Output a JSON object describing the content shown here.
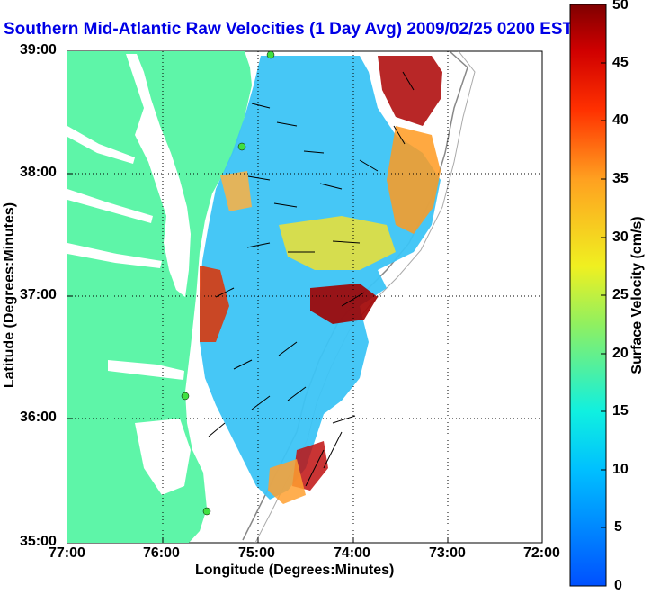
{
  "title": "Southern Mid-Atlantic Raw Velocities (1 Day Avg) 2009/02/25 0200 EST",
  "axes": {
    "xlabel": "Longitude (Degrees:Minutes)",
    "ylabel": "Latitude (Degrees:Minutes)",
    "xticks": [
      "77:00",
      "76:00",
      "75:00",
      "74:00",
      "73:00",
      "72:00"
    ],
    "yticks": [
      "39:00",
      "38:00",
      "37:00",
      "36:00",
      "35:00"
    ]
  },
  "colorbar": {
    "label": "Surface Velocity (cm/s)",
    "ticks": [
      "50",
      "45",
      "40",
      "35",
      "30",
      "25",
      "20",
      "15",
      "10",
      "5",
      "0"
    ],
    "min": 0,
    "max": 50,
    "units": "cm/s"
  },
  "colors": {
    "title": "#0000e6",
    "land": "#5ef5a8",
    "water": "#ffffff",
    "grid": "#000000"
  },
  "map": {
    "lon_range": [
      -77,
      -72
    ],
    "lat_range": [
      35,
      39
    ],
    "stations": 4,
    "max_speed_cm_s": 50
  }
}
